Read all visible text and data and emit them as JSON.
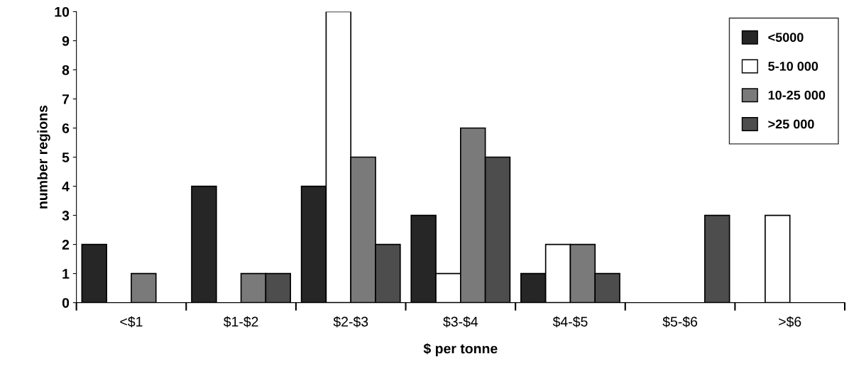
{
  "chart_data": {
    "type": "bar",
    "xlabel": "$ per tonne",
    "ylabel": "number regions",
    "categories": [
      "<$1",
      "$1-$2",
      "$2-$3",
      "$3-$4",
      "$4-$5",
      "$5-$6",
      ">$6"
    ],
    "series": [
      {
        "name": "<5000",
        "color": "#262626",
        "values": [
          2,
          4,
          4,
          3,
          1,
          0,
          0
        ]
      },
      {
        "name": "5-10 000",
        "color": "#ffffff",
        "values": [
          0,
          0,
          10,
          1,
          2,
          0,
          3
        ]
      },
      {
        "name": "10-25 000",
        "color": "#7a7a7a",
        "values": [
          1,
          1,
          5,
          6,
          2,
          0,
          0
        ]
      },
      {
        "name": ">25 000",
        "color": "#4d4d4d",
        "values": [
          0,
          1,
          2,
          5,
          1,
          3,
          0
        ]
      }
    ],
    "ylim": [
      0,
      10
    ],
    "yticks": [
      0,
      1,
      2,
      3,
      4,
      5,
      6,
      7,
      8,
      9,
      10
    ],
    "grid": false,
    "legend": "top right"
  }
}
